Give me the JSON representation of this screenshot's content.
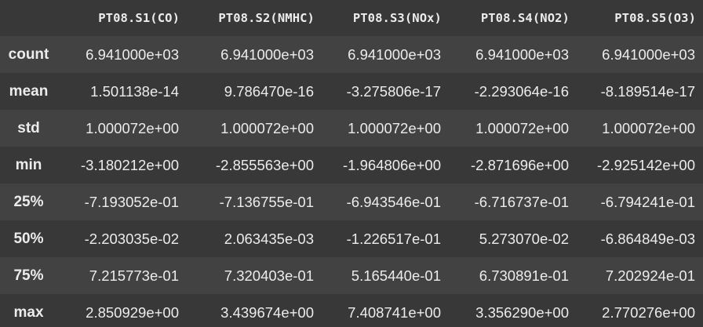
{
  "table": {
    "columns": [
      "PT08.S1(CO)",
      "PT08.S2(NMHC)",
      "PT08.S3(NOx)",
      "PT08.S4(NO2)",
      "PT08.S5(O3)"
    ],
    "rows": [
      {
        "label": "count",
        "values": [
          "6.941000e+03",
          "6.941000e+03",
          "6.941000e+03",
          "6.941000e+03",
          "6.941000e+03"
        ]
      },
      {
        "label": "mean",
        "values": [
          "1.501138e-14",
          "9.786470e-16",
          "-3.275806e-17",
          "-2.293064e-16",
          "-8.189514e-17"
        ]
      },
      {
        "label": "std",
        "values": [
          "1.000072e+00",
          "1.000072e+00",
          "1.000072e+00",
          "1.000072e+00",
          "1.000072e+00"
        ]
      },
      {
        "label": "min",
        "values": [
          "-3.180212e+00",
          "-2.855563e+00",
          "-1.964806e+00",
          "-2.871696e+00",
          "-2.925142e+00"
        ]
      },
      {
        "label": "25%",
        "values": [
          "-7.193052e-01",
          "-7.136755e-01",
          "-6.943546e-01",
          "-6.716737e-01",
          "-6.794241e-01"
        ]
      },
      {
        "label": "50%",
        "values": [
          "-2.203035e-02",
          "2.063435e-03",
          "-1.226517e-01",
          "5.273070e-02",
          "-6.864849e-03"
        ]
      },
      {
        "label": "75%",
        "values": [
          "7.215773e-01",
          "7.320403e-01",
          "5.165440e-01",
          "6.730891e-01",
          "7.202924e-01"
        ]
      },
      {
        "label": "max",
        "values": [
          "2.850929e+00",
          "3.439674e+00",
          "7.408741e+00",
          "3.356290e+00",
          "2.770276e+00"
        ]
      }
    ]
  }
}
